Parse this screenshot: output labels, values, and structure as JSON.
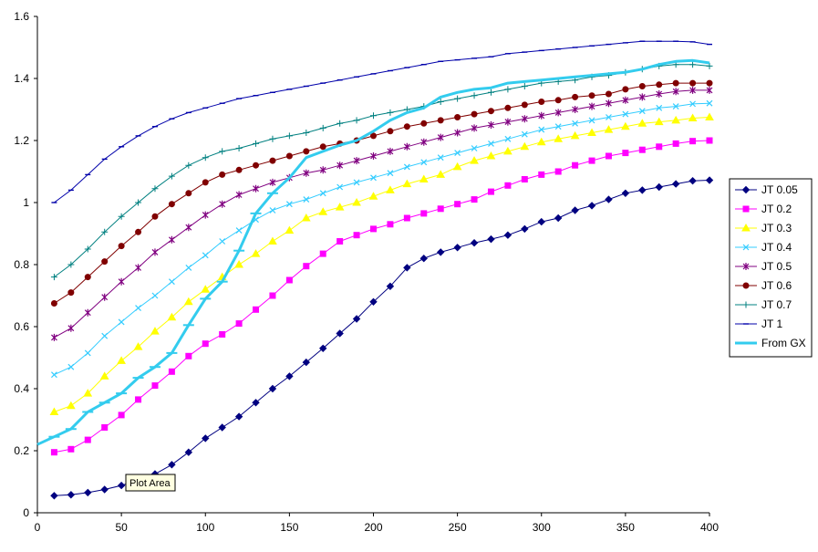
{
  "tooltip": {
    "text": "Plot Area"
  },
  "chart_data": {
    "type": "line",
    "title": "",
    "xlabel": "",
    "ylabel": "",
    "xlim": [
      0,
      400
    ],
    "ylim": [
      0,
      1.6
    ],
    "x_ticks": [
      0,
      50,
      100,
      150,
      200,
      250,
      300,
      350,
      400
    ],
    "y_ticks": [
      0,
      0.2,
      0.4,
      0.6,
      0.8,
      1,
      1.2,
      1.4,
      1.6
    ],
    "x_tick_labels": [
      "0",
      "50",
      "100",
      "150",
      "200",
      "250",
      "300",
      "350",
      "400"
    ],
    "y_tick_labels": [
      "0",
      "0.2",
      "0.4",
      "0.6",
      "0.8",
      "1",
      "1.2",
      "1.4",
      "1.6"
    ],
    "grid": false,
    "legend_position": "right",
    "x": [
      10,
      20,
      30,
      40,
      50,
      60,
      70,
      80,
      90,
      100,
      110,
      120,
      130,
      140,
      150,
      160,
      170,
      180,
      190,
      200,
      210,
      220,
      230,
      240,
      250,
      260,
      270,
      280,
      290,
      300,
      310,
      320,
      330,
      340,
      350,
      360,
      370,
      380,
      390,
      400
    ],
    "series": [
      {
        "name": "JT 0.05",
        "color": "#000080",
        "marker": "diamond",
        "values": [
          0.055,
          0.058,
          0.065,
          0.075,
          0.088,
          0.105,
          0.125,
          0.155,
          0.195,
          0.24,
          0.275,
          0.31,
          0.355,
          0.4,
          0.44,
          0.485,
          0.53,
          0.578,
          0.625,
          0.68,
          0.73,
          0.79,
          0.82,
          0.84,
          0.855,
          0.87,
          0.882,
          0.895,
          0.915,
          0.938,
          0.95,
          0.975,
          0.99,
          1.01,
          1.03,
          1.04,
          1.05,
          1.06,
          1.07,
          1.072
        ]
      },
      {
        "name": "JT 0.2",
        "color": "#ff00ff",
        "marker": "square",
        "values": [
          0.195,
          0.205,
          0.235,
          0.275,
          0.315,
          0.365,
          0.41,
          0.455,
          0.505,
          0.545,
          0.575,
          0.61,
          0.655,
          0.7,
          0.75,
          0.795,
          0.835,
          0.875,
          0.895,
          0.915,
          0.93,
          0.95,
          0.965,
          0.98,
          0.995,
          1.01,
          1.035,
          1.055,
          1.075,
          1.09,
          1.1,
          1.12,
          1.135,
          1.15,
          1.16,
          1.17,
          1.18,
          1.19,
          1.198,
          1.2
        ]
      },
      {
        "name": "JT 0.3",
        "color": "#ffff00",
        "marker": "triangle",
        "values": [
          0.325,
          0.345,
          0.385,
          0.44,
          0.49,
          0.535,
          0.585,
          0.63,
          0.68,
          0.72,
          0.76,
          0.8,
          0.835,
          0.875,
          0.91,
          0.95,
          0.97,
          0.985,
          1.0,
          1.02,
          1.04,
          1.06,
          1.075,
          1.09,
          1.115,
          1.135,
          1.15,
          1.165,
          1.18,
          1.195,
          1.205,
          1.215,
          1.225,
          1.235,
          1.245,
          1.255,
          1.26,
          1.265,
          1.272,
          1.275
        ]
      },
      {
        "name": "JT 0.4",
        "color": "#33ccff",
        "marker": "x",
        "values": [
          0.445,
          0.47,
          0.515,
          0.57,
          0.615,
          0.66,
          0.7,
          0.745,
          0.79,
          0.83,
          0.875,
          0.91,
          0.945,
          0.975,
          0.995,
          1.01,
          1.03,
          1.05,
          1.065,
          1.08,
          1.095,
          1.115,
          1.13,
          1.145,
          1.16,
          1.175,
          1.19,
          1.205,
          1.22,
          1.235,
          1.245,
          1.255,
          1.265,
          1.275,
          1.285,
          1.295,
          1.305,
          1.31,
          1.318,
          1.32
        ]
      },
      {
        "name": "JT 0.5",
        "color": "#800080",
        "marker": "star",
        "values": [
          0.565,
          0.595,
          0.645,
          0.695,
          0.745,
          0.79,
          0.84,
          0.88,
          0.92,
          0.96,
          0.995,
          1.025,
          1.045,
          1.065,
          1.08,
          1.095,
          1.105,
          1.12,
          1.135,
          1.15,
          1.165,
          1.18,
          1.195,
          1.21,
          1.225,
          1.24,
          1.25,
          1.26,
          1.27,
          1.28,
          1.29,
          1.3,
          1.31,
          1.32,
          1.33,
          1.34,
          1.35,
          1.358,
          1.362,
          1.362
        ]
      },
      {
        "name": "JT 0.6",
        "color": "#800000",
        "marker": "circle",
        "values": [
          0.675,
          0.71,
          0.76,
          0.81,
          0.86,
          0.905,
          0.955,
          0.995,
          1.03,
          1.065,
          1.09,
          1.105,
          1.12,
          1.135,
          1.15,
          1.165,
          1.18,
          1.19,
          1.2,
          1.215,
          1.23,
          1.245,
          1.255,
          1.265,
          1.275,
          1.285,
          1.295,
          1.305,
          1.315,
          1.325,
          1.33,
          1.34,
          1.345,
          1.35,
          1.365,
          1.375,
          1.38,
          1.385,
          1.385,
          1.385
        ]
      },
      {
        "name": "JT 0.7",
        "color": "#008080",
        "marker": "plus",
        "values": [
          0.76,
          0.8,
          0.85,
          0.905,
          0.955,
          1.0,
          1.045,
          1.085,
          1.12,
          1.145,
          1.165,
          1.175,
          1.19,
          1.205,
          1.215,
          1.225,
          1.24,
          1.255,
          1.265,
          1.28,
          1.29,
          1.3,
          1.31,
          1.325,
          1.335,
          1.345,
          1.355,
          1.365,
          1.375,
          1.385,
          1.39,
          1.395,
          1.405,
          1.41,
          1.42,
          1.43,
          1.44,
          1.445,
          1.445,
          1.44
        ]
      },
      {
        "name": "JT 1",
        "color": "#0000aa",
        "marker": "dash",
        "values": [
          1.0,
          1.04,
          1.09,
          1.14,
          1.18,
          1.215,
          1.245,
          1.27,
          1.29,
          1.305,
          1.32,
          1.335,
          1.345,
          1.355,
          1.365,
          1.375,
          1.385,
          1.395,
          1.405,
          1.415,
          1.425,
          1.435,
          1.445,
          1.455,
          1.46,
          1.465,
          1.47,
          1.48,
          1.485,
          1.49,
          1.495,
          1.5,
          1.505,
          1.51,
          1.515,
          1.52,
          1.52,
          1.52,
          1.518,
          1.51
        ]
      }
    ],
    "reference_series": {
      "name": "From GX",
      "color": "#33ccee",
      "x": [
        0,
        10,
        20,
        30,
        40,
        50,
        60,
        70,
        80,
        90,
        100,
        110,
        120,
        130,
        140,
        150,
        160,
        170,
        180,
        190,
        200,
        210,
        220,
        230,
        240,
        250,
        260,
        270,
        280,
        290,
        300,
        310,
        320,
        330,
        340,
        350,
        360,
        370,
        380,
        390,
        400
      ],
      "values": [
        0.22,
        0.245,
        0.27,
        0.325,
        0.355,
        0.385,
        0.435,
        0.47,
        0.515,
        0.605,
        0.69,
        0.745,
        0.845,
        0.965,
        1.03,
        1.08,
        1.145,
        1.165,
        1.185,
        1.2,
        1.23,
        1.265,
        1.29,
        1.305,
        1.34,
        1.355,
        1.365,
        1.37,
        1.385,
        1.39,
        1.395,
        1.4,
        1.405,
        1.41,
        1.415,
        1.42,
        1.43,
        1.445,
        1.455,
        1.458,
        1.45
      ]
    }
  }
}
